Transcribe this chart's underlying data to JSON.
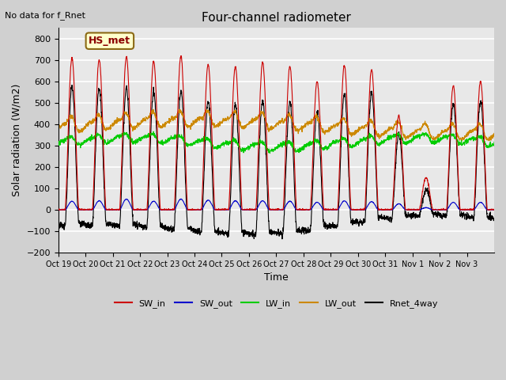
{
  "title": "Four-channel radiometer",
  "top_left_text": "No data for f_Rnet",
  "annotation_box": "HS_met",
  "ylabel": "Solar radiation (W/m2)",
  "xlabel": "Time",
  "ylim": [
    -200,
    850
  ],
  "yticks": [
    -200,
    -100,
    0,
    100,
    200,
    300,
    400,
    500,
    600,
    700,
    800
  ],
  "x_tick_positions": [
    0,
    1,
    2,
    3,
    4,
    5,
    6,
    7,
    8,
    9,
    10,
    11,
    12,
    13,
    14,
    15
  ],
  "x_tick_labels": [
    "Oct 19",
    "Oct 20",
    "Oct 21",
    "Oct 22",
    "Oct 23",
    "Oct 24",
    "Oct 25",
    "Oct 26",
    "Oct 27",
    "Oct 28",
    "Oct 29",
    "Oct 30",
    "Oct 31",
    "Nov 1",
    "Nov 2",
    "Nov 3"
  ],
  "n_days": 16,
  "fig_bg_color": "#d0d0d0",
  "plot_bg_color": "#e8e8e8",
  "grid_color": "#ffffff",
  "colors": {
    "SW_in": "#cc0000",
    "SW_out": "#0000cc",
    "LW_in": "#00cc00",
    "LW_out": "#cc8800",
    "Rnet_4way": "#000000"
  },
  "sw_in_peaks": [
    710,
    700,
    715,
    695,
    720,
    680,
    670,
    690,
    670,
    600,
    675,
    655,
    440,
    150,
    580,
    600
  ],
  "sw_out_peaks": [
    40,
    42,
    50,
    40,
    50,
    45,
    42,
    42,
    40,
    35,
    42,
    38,
    28,
    10,
    35,
    35
  ],
  "lw_in_base": 310,
  "lw_out_base": 380
}
